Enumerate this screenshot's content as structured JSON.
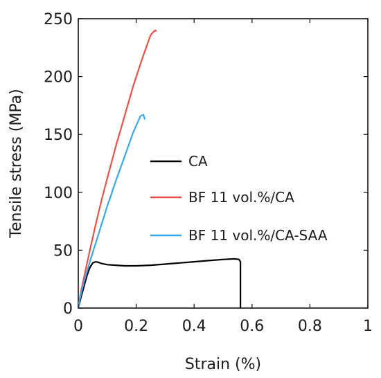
{
  "chart_data": {
    "type": "line",
    "title": "",
    "xlabel": "Strain (%)",
    "ylabel": "Tensile stress (MPa)",
    "xlim": [
      0,
      1
    ],
    "ylim": [
      0,
      250
    ],
    "xticks": [
      0,
      0.2,
      0.4,
      0.6,
      0.8,
      1
    ],
    "xtick_labels": [
      "0",
      "0.2",
      "0.4",
      "0.6",
      "0.8",
      "1"
    ],
    "yticks": [
      0,
      50,
      100,
      150,
      200,
      250
    ],
    "ytick_labels": [
      "0",
      "50",
      "100",
      "150",
      "200",
      "250"
    ],
    "grid": false,
    "legend_position": "center-right",
    "series": [
      {
        "name": "CA",
        "color": "#000000",
        "x": [
          0,
          0.01,
          0.02,
          0.03,
          0.04,
          0.05,
          0.06,
          0.07,
          0.08,
          0.1,
          0.13,
          0.16,
          0.2,
          0.25,
          0.3,
          0.35,
          0.4,
          0.45,
          0.5,
          0.54,
          0.555,
          0.56,
          0.56
        ],
        "y": [
          0,
          10,
          19,
          28,
          35,
          39,
          40,
          39.5,
          38.5,
          37.5,
          37,
          36.5,
          36.5,
          37,
          38,
          39,
          40,
          41,
          42,
          42.5,
          42,
          40,
          0
        ]
      },
      {
        "name": "BF 11 vol.%/CA",
        "color": "#e8524a",
        "x": [
          0,
          0.005,
          0.01,
          0.02,
          0.04,
          0.06,
          0.08,
          0.1,
          0.13,
          0.16,
          0.19,
          0.22,
          0.25,
          0.265,
          0.27
        ],
        "y": [
          0,
          8,
          15,
          27,
          50,
          72,
          93,
          112,
          140,
          166,
          192,
          215,
          236,
          240,
          239
        ]
      },
      {
        "name": "BF 11 vol.%/CA-SAA",
        "color": "#3aa8e6",
        "x": [
          0,
          0.005,
          0.01,
          0.02,
          0.04,
          0.06,
          0.08,
          0.1,
          0.13,
          0.16,
          0.19,
          0.215,
          0.225,
          0.23
        ],
        "y": [
          0,
          7,
          13,
          23,
          40,
          56,
          72,
          88,
          110,
          131,
          152,
          166,
          167,
          163
        ]
      }
    ]
  }
}
